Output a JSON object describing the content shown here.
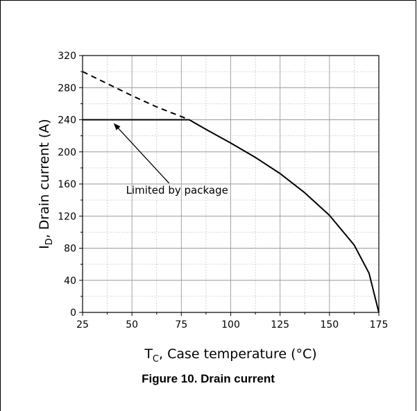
{
  "caption": "Figure 10. Drain current",
  "chart_data": {
    "type": "line",
    "xlabel": {
      "main": "T",
      "sub": "C",
      "rest": ", Case temperature (°C)"
    },
    "ylabel": {
      "main": "I",
      "sub": "D",
      "rest": ", Drain current (A)"
    },
    "xlim": [
      25,
      175
    ],
    "ylim": [
      0,
      320
    ],
    "xticks": [
      25,
      50,
      75,
      100,
      125,
      150,
      175
    ],
    "yticks": [
      0,
      40,
      80,
      120,
      160,
      200,
      240,
      280,
      320
    ],
    "grid": true,
    "series": [
      {
        "style": "dashed",
        "x": [
          25,
          37.5,
          50,
          62.5,
          75,
          79
        ],
        "y": [
          300,
          285,
          270,
          256,
          244,
          240
        ]
      },
      {
        "style": "solid",
        "x": [
          25,
          79
        ],
        "y": [
          240,
          240
        ]
      },
      {
        "style": "solid",
        "x": [
          79,
          87.5,
          100,
          112.5,
          125,
          137.5,
          150,
          162.5,
          170,
          175
        ],
        "y": [
          240,
          228,
          211,
          193,
          173,
          149,
          121,
          84,
          49,
          0
        ]
      }
    ],
    "annotations": [
      {
        "text": "Limited by package",
        "x": 47,
        "y": 148,
        "arrow_to": {
          "x": 41,
          "y": 235
        }
      }
    ]
  },
  "colors": {
    "line": "#000000",
    "grid": "#9a9a9a",
    "subgrid": "#c8c8c8"
  }
}
